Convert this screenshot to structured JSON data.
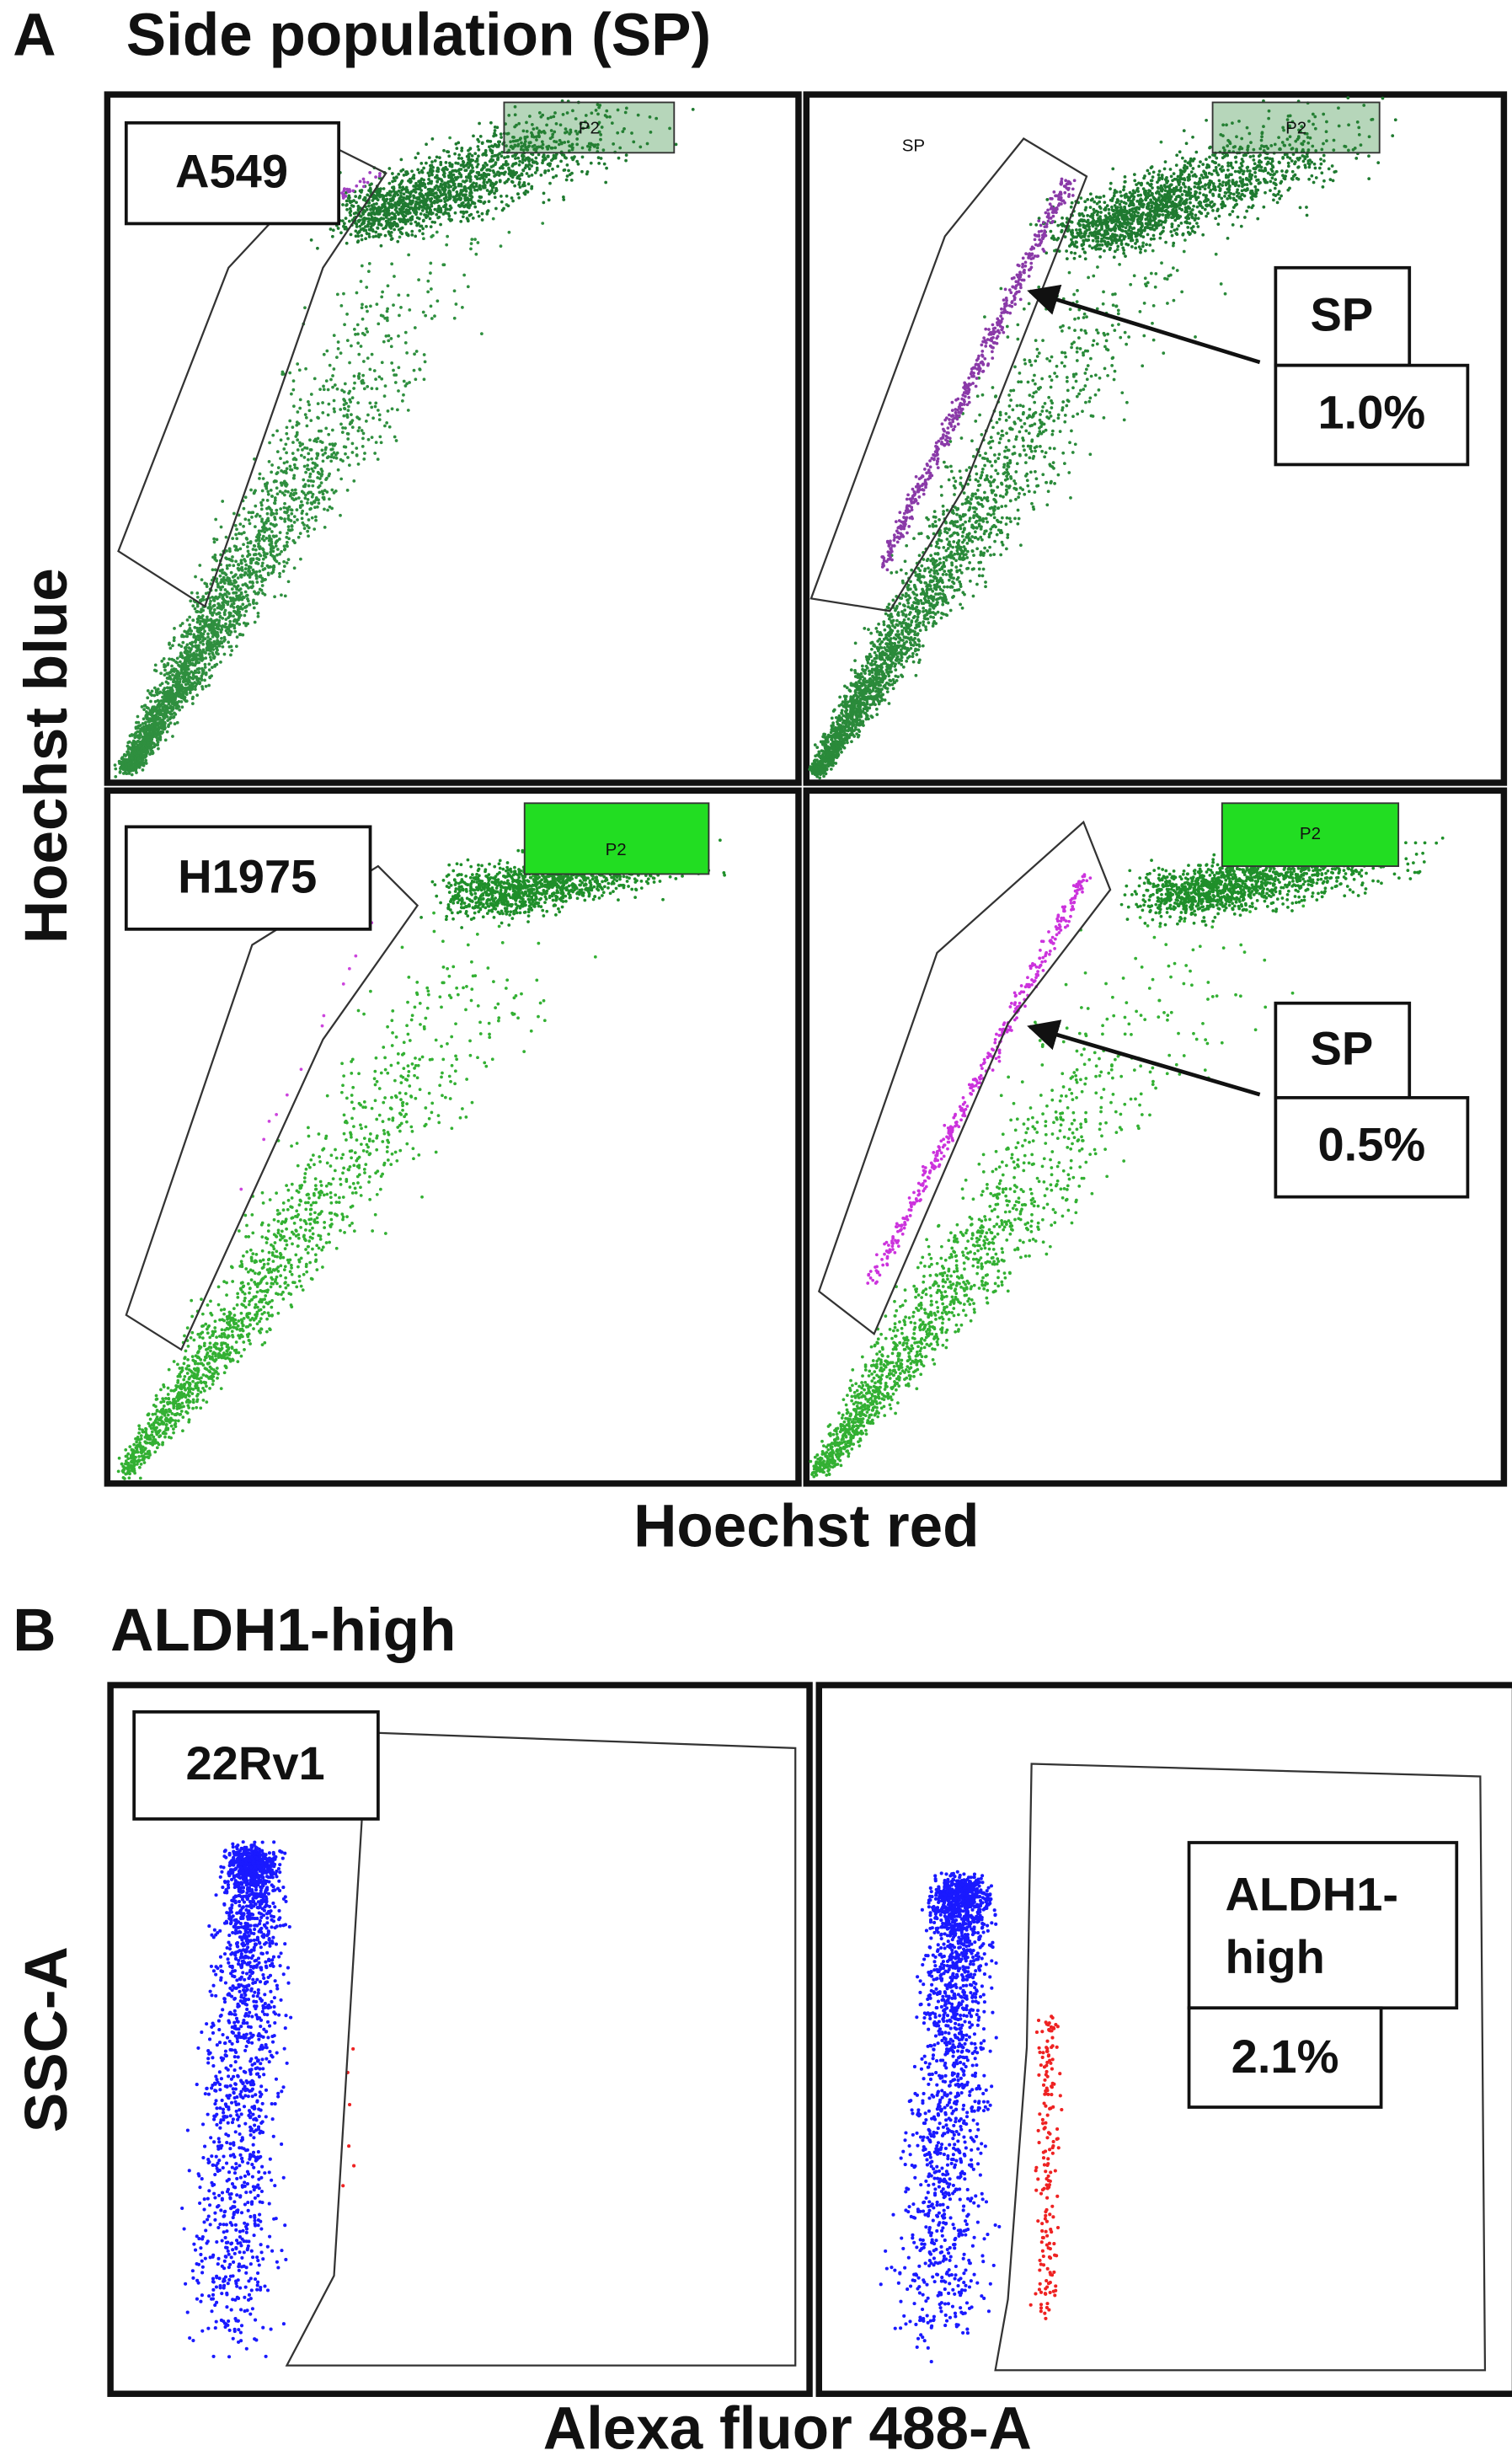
{
  "figure": {
    "panels": [
      {
        "letter": "A",
        "title": "Side population (SP)",
        "y_axis": "Hoechst blue",
        "x_axis": "Hoechst red",
        "plots": [
          {
            "label": "A549",
            "gate_label": "P2"
          },
          {
            "gate_label": "P2",
            "region_label": "SP",
            "annotation": "SP",
            "percent": "1.0%"
          },
          {
            "label": "H1975",
            "gate_label": "P2"
          },
          {
            "gate_label": "P2",
            "annotation": "SP",
            "percent": "0.5%"
          }
        ]
      },
      {
        "letter": "B",
        "title": "ALDH1-high",
        "y_axis": "SSC-A",
        "x_axis": "Alexa fluor 488-A",
        "plots": [
          {
            "label": "22Rv1"
          },
          {
            "annotation": "ALDH1-\nhigh",
            "percent": "2.1%"
          }
        ]
      }
    ]
  }
}
